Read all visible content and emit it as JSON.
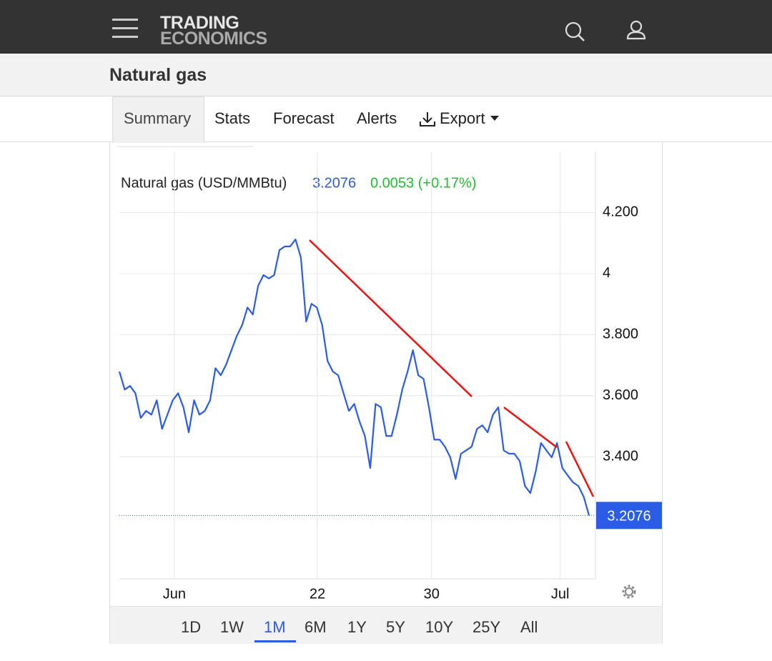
{
  "header": {
    "logo_top": "TRADING",
    "logo_bottom": "ECONOMICS"
  },
  "page_title": "Natural gas",
  "tabs": [
    "Summary",
    "Stats",
    "Forecast",
    "Alerts",
    "Export"
  ],
  "chart_data": {
    "type": "line",
    "title": "Natural gas (USD/MMBtu)",
    "change": "0.0053 (+0.17%)",
    "color": "#2b5ce6",
    "values": [
      3.679,
      3.62,
      3.632,
      3.608,
      3.527,
      3.55,
      3.538,
      3.585,
      3.491,
      3.538,
      3.585,
      3.608,
      3.562,
      3.48,
      3.585,
      3.538,
      3.55,
      3.585,
      3.69,
      3.667,
      3.702,
      3.749,
      3.796,
      3.831,
      3.889,
      3.866,
      3.96,
      3.995,
      3.984,
      3.995,
      4.077,
      4.089,
      4.089,
      4.112,
      4.053,
      3.843,
      3.901,
      3.889,
      3.831,
      3.714,
      3.679,
      3.667,
      3.608,
      3.55,
      3.573,
      3.515,
      3.468,
      3.363,
      3.573,
      3.562,
      3.468,
      3.468,
      3.538,
      3.62,
      3.679,
      3.749,
      3.667,
      3.655,
      3.562,
      3.456,
      3.456,
      3.433,
      3.398,
      3.327,
      3.41,
      3.421,
      3.433,
      3.491,
      3.503,
      3.48,
      3.538,
      3.562,
      3.421,
      3.41,
      3.41,
      3.386,
      3.304,
      3.281,
      3.351,
      3.445,
      3.421,
      3.398,
      3.445,
      3.363,
      3.339,
      3.316,
      3.304,
      3.269,
      3.2076
    ],
    "xlim": [
      0,
      89.2
    ],
    "xticks": [
      {
        "value": 10.3,
        "label": "Jun"
      },
      {
        "value": 37.1,
        "label": "22"
      },
      {
        "value": 58.5,
        "label": "30"
      },
      {
        "value": 82.6,
        "label": "Jul"
      }
    ],
    "ylim": [
      3.0,
      4.4
    ],
    "yticks": [
      {
        "value": 4.2,
        "label": "4.200"
      },
      4,
      {
        "value": 3.8,
        "label": "3.800"
      },
      {
        "value": 3.6,
        "label": "3.600"
      },
      {
        "value": 3.4,
        "label": "3.400"
      }
    ],
    "grid": true
  },
  "ranges": [
    "1D",
    "1W",
    "1M",
    "6M",
    "1Y",
    "5Y",
    "10Y",
    "25Y",
    "All"
  ]
}
